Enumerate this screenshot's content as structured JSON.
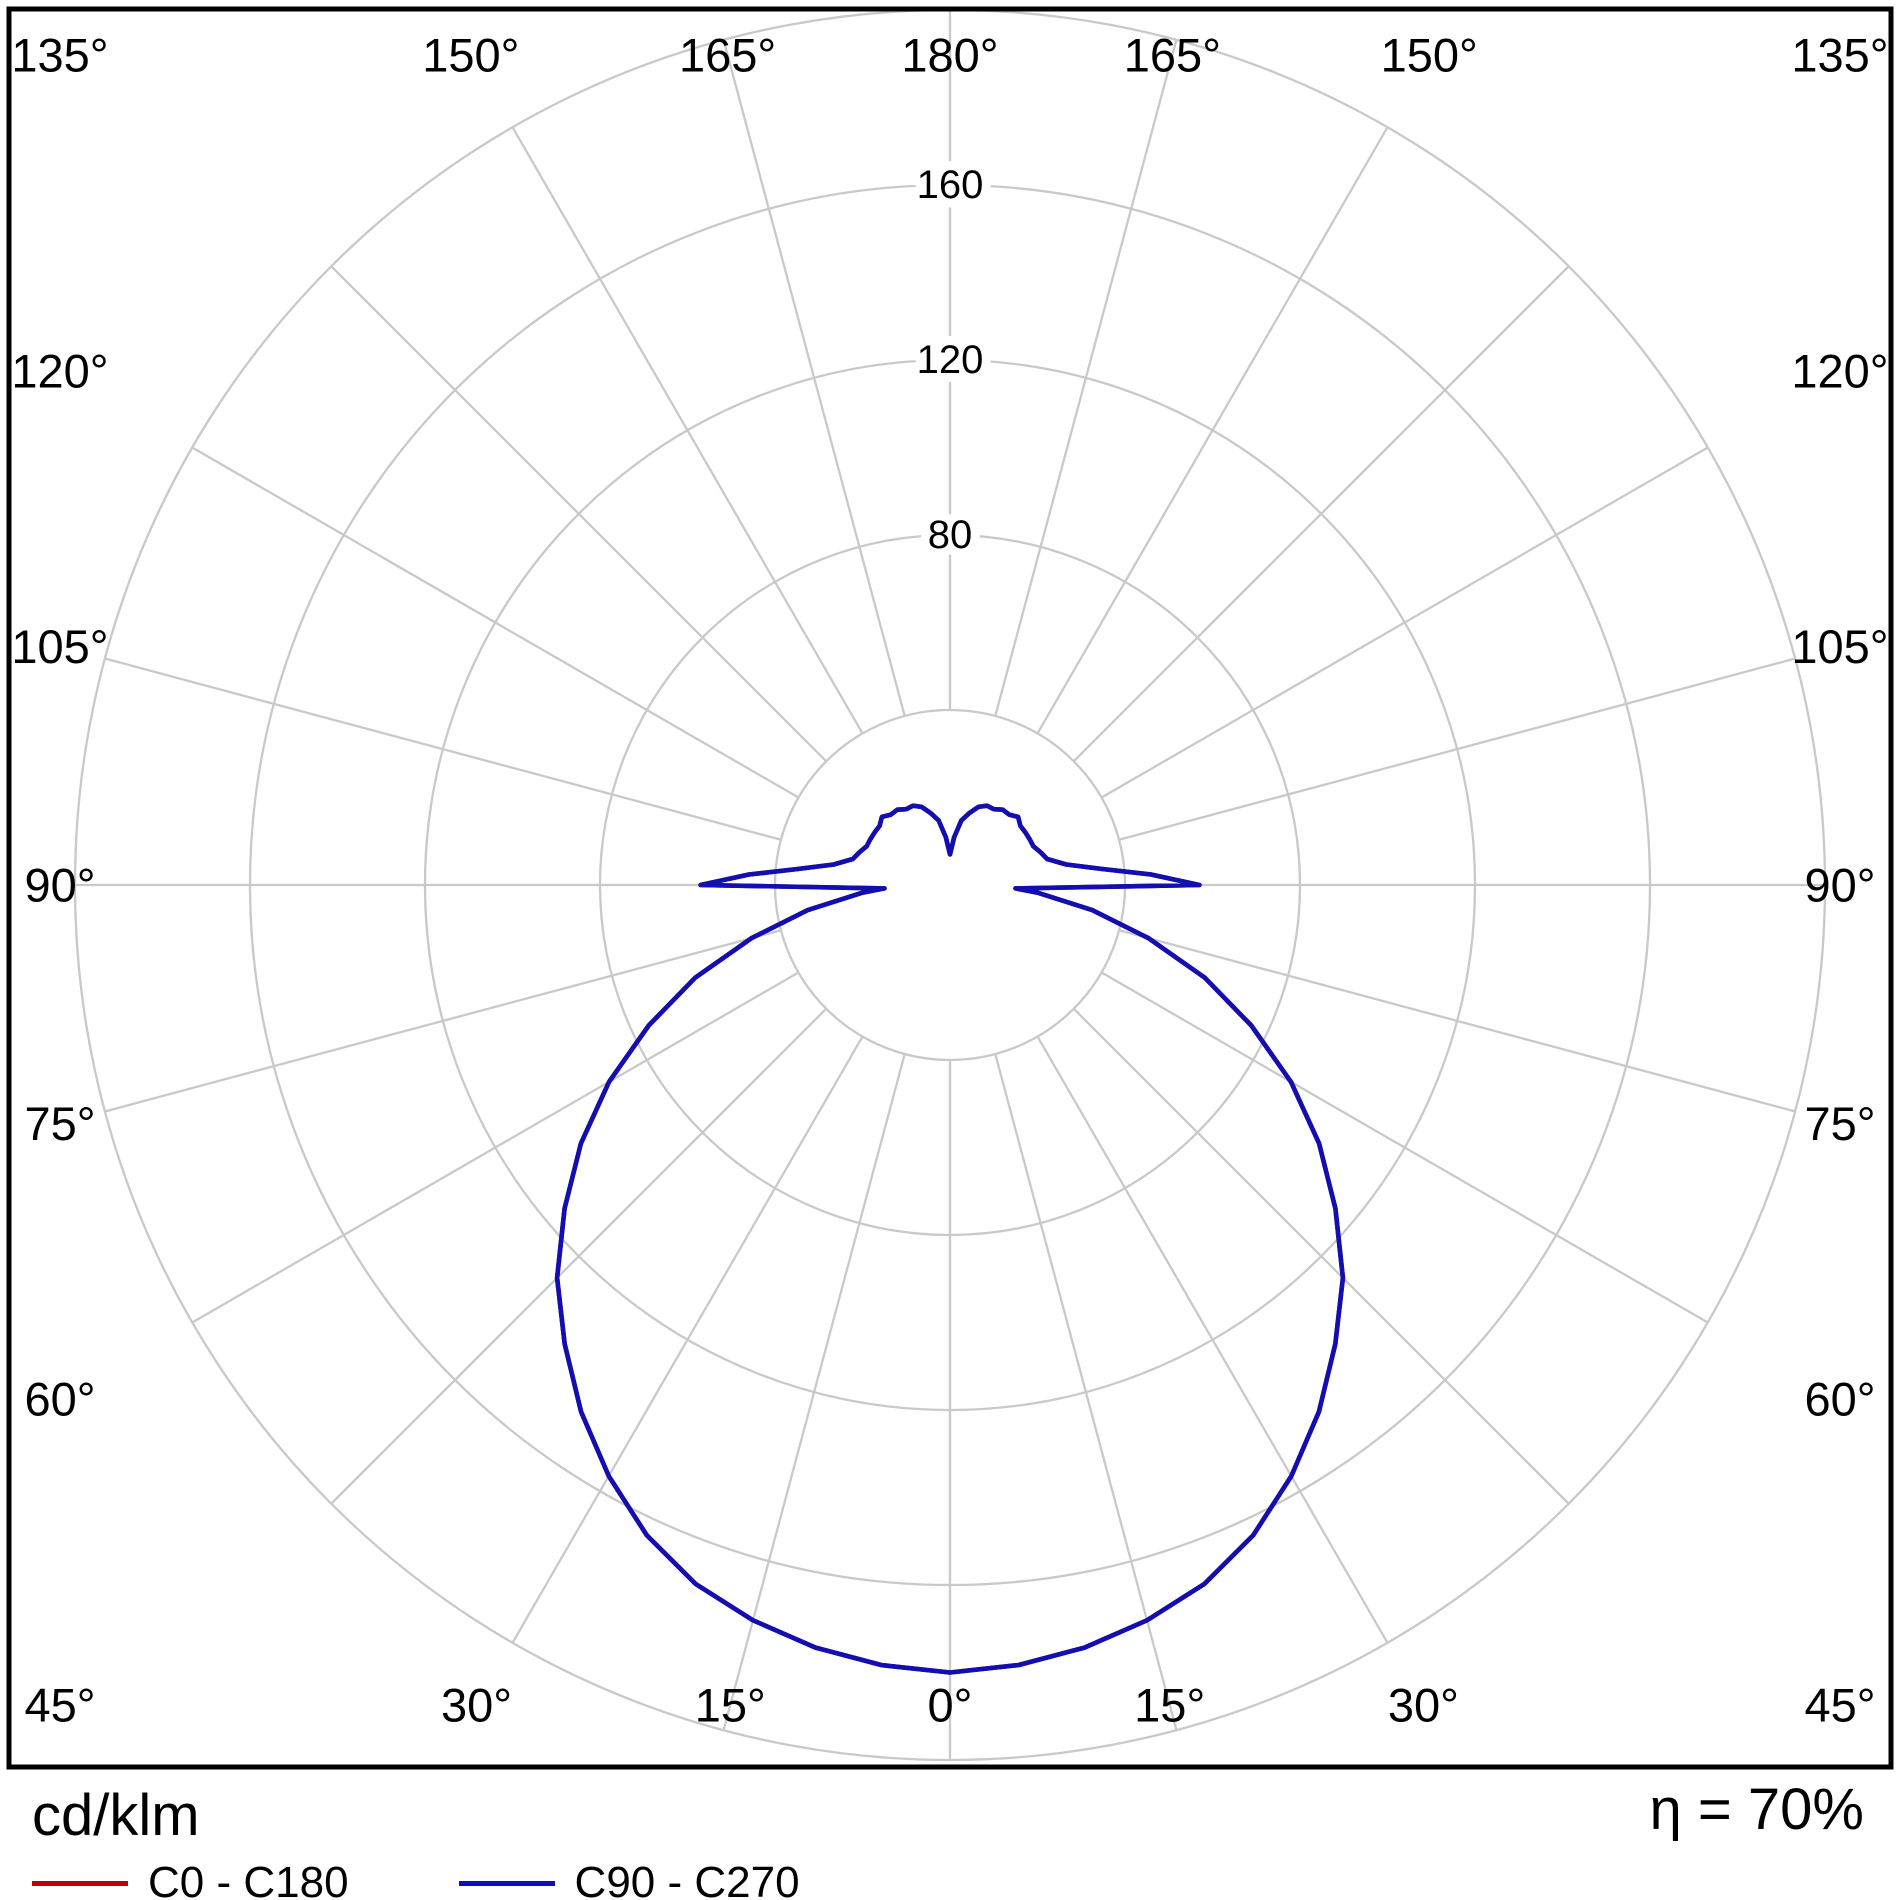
{
  "colors": {
    "c0_series": "#c00000",
    "c90_series": "#0f0fb4",
    "grid": "#c9c9c9",
    "frame": "#000000",
    "text": "#000000",
    "background": "#ffffff"
  },
  "footer": {
    "unit_label": "cd/klm",
    "efficiency_label": "η = 70%",
    "legend": [
      {
        "label": "C0 - C180",
        "color": "#c00000"
      },
      {
        "label": "C90 - C270",
        "color": "#0f0fb4"
      }
    ]
  },
  "chart_data": {
    "type": "polar",
    "subtype": "luminous-intensity-distribution",
    "unit": "cd/klm",
    "efficiency_percent": 70,
    "orientation": "0 degrees at bottom (nadir), 180 degrees at top (zenith), symmetric left/right",
    "rmax": 200,
    "radial_ticks": [
      40,
      80,
      120,
      160,
      200
    ],
    "radial_tick_labels": [
      {
        "value": 80,
        "label": "80"
      },
      {
        "value": 120,
        "label": "120"
      },
      {
        "value": 160,
        "label": "160"
      }
    ],
    "angle_ticks": [
      {
        "deg": 0,
        "label": "0°"
      },
      {
        "deg": 15,
        "label": "15°"
      },
      {
        "deg": 30,
        "label": "30°"
      },
      {
        "deg": 45,
        "label": "45°"
      },
      {
        "deg": 60,
        "label": "60°"
      },
      {
        "deg": 75,
        "label": "75°"
      },
      {
        "deg": 90,
        "label": "90°"
      },
      {
        "deg": 105,
        "label": "105°"
      },
      {
        "deg": 120,
        "label": "120°"
      },
      {
        "deg": 135,
        "label": "135°"
      },
      {
        "deg": 150,
        "label": "150°"
      },
      {
        "deg": 165,
        "label": "165°"
      },
      {
        "deg": 180,
        "label": "180°"
      }
    ],
    "grid": true,
    "legend_position": "bottom-left",
    "series": [
      {
        "name": "C0 - C180",
        "color": "#c00000",
        "mirrored": true,
        "points": [
          [
            0,
            180
          ],
          [
            5,
            179
          ],
          [
            10,
            177
          ],
          [
            15,
            174
          ],
          [
            20,
            170
          ],
          [
            25,
            164
          ],
          [
            30,
            156
          ],
          [
            35,
            147
          ],
          [
            40,
            137
          ],
          [
            45,
            127
          ],
          [
            50,
            115
          ],
          [
            55,
            103
          ],
          [
            60,
            90
          ],
          [
            65,
            76
          ],
          [
            70,
            62
          ],
          [
            75,
            47
          ],
          [
            80,
            33
          ],
          [
            85,
            20
          ],
          [
            87,
            15
          ],
          [
            90,
            57
          ],
          [
            93,
            46
          ],
          [
            96,
            35
          ],
          [
            100,
            27
          ],
          [
            105,
            23
          ],
          [
            110,
            22
          ],
          [
            115,
            21
          ],
          [
            120,
            21
          ],
          [
            125,
            21
          ],
          [
            130,
            21
          ],
          [
            135,
            22
          ],
          [
            140,
            21
          ],
          [
            145,
            21
          ],
          [
            150,
            20
          ],
          [
            155,
            20
          ],
          [
            160,
            19
          ],
          [
            165,
            17
          ],
          [
            170,
            15
          ],
          [
            175,
            11
          ],
          [
            180,
            7
          ]
        ]
      },
      {
        "name": "C90 - C270",
        "color": "#0f0fb4",
        "mirrored": true,
        "points": [
          [
            0,
            180
          ],
          [
            5,
            179
          ],
          [
            10,
            177
          ],
          [
            15,
            174
          ],
          [
            20,
            170
          ],
          [
            25,
            164
          ],
          [
            30,
            156
          ],
          [
            35,
            147
          ],
          [
            40,
            137
          ],
          [
            45,
            127
          ],
          [
            50,
            115
          ],
          [
            55,
            103
          ],
          [
            60,
            90
          ],
          [
            65,
            76
          ],
          [
            70,
            62
          ],
          [
            75,
            47
          ],
          [
            80,
            33
          ],
          [
            85,
            20
          ],
          [
            87,
            15
          ],
          [
            90,
            57
          ],
          [
            93,
            46
          ],
          [
            96,
            35
          ],
          [
            100,
            27
          ],
          [
            105,
            23
          ],
          [
            110,
            22
          ],
          [
            115,
            21
          ],
          [
            120,
            21
          ],
          [
            125,
            21
          ],
          [
            130,
            21
          ],
          [
            135,
            22
          ],
          [
            140,
            21
          ],
          [
            145,
            21
          ],
          [
            150,
            20
          ],
          [
            155,
            20
          ],
          [
            160,
            19
          ],
          [
            165,
            17
          ],
          [
            170,
            15
          ],
          [
            175,
            11
          ],
          [
            180,
            7
          ]
        ]
      }
    ]
  }
}
